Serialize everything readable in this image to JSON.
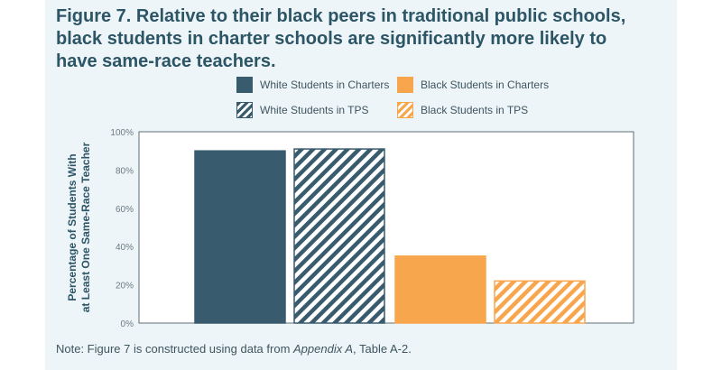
{
  "title": "Figure 7. Relative to their black peers in traditional public schools, black students in charter schools are significantly more likely to have same-race teachers.",
  "note": {
    "prefix": "Note: Figure 7 is constructed using data from ",
    "source": "Appendix A",
    "suffix": ", Table A-2."
  },
  "colors": {
    "white_series": "#385b6d",
    "black_series": "#f8a64d",
    "title": "#2c5566",
    "panel_background": "#eef5f8"
  },
  "chart_data": {
    "type": "bar",
    "title": "",
    "xlabel": "",
    "ylabel": "Percentage of Students With at Least One Same-Race Teacher",
    "ylabel_lines": [
      "Percentage of Students With",
      "at Least One Same-Race Teacher"
    ],
    "ylim": [
      0,
      100
    ],
    "yticks": [
      0,
      20,
      40,
      60,
      80,
      100
    ],
    "ytick_labels": [
      "0%",
      "20%",
      "40%",
      "60%",
      "80%",
      "100%"
    ],
    "grid": false,
    "legend_position": "top",
    "categories": [
      "White Students in Charters",
      "White Students in TPS",
      "Black Students in Charters",
      "Black Students in TPS"
    ],
    "series": [
      {
        "name": "White Students in Charters",
        "value": 90,
        "color": "#385b6d",
        "pattern": "solid"
      },
      {
        "name": "White Students in TPS",
        "value": 91,
        "color": "#385b6d",
        "pattern": "hatched"
      },
      {
        "name": "Black Students in Charters",
        "value": 35,
        "color": "#f8a64d",
        "pattern": "solid"
      },
      {
        "name": "Black Students in TPS",
        "value": 22,
        "color": "#f8a64d",
        "pattern": "hatched"
      }
    ]
  }
}
